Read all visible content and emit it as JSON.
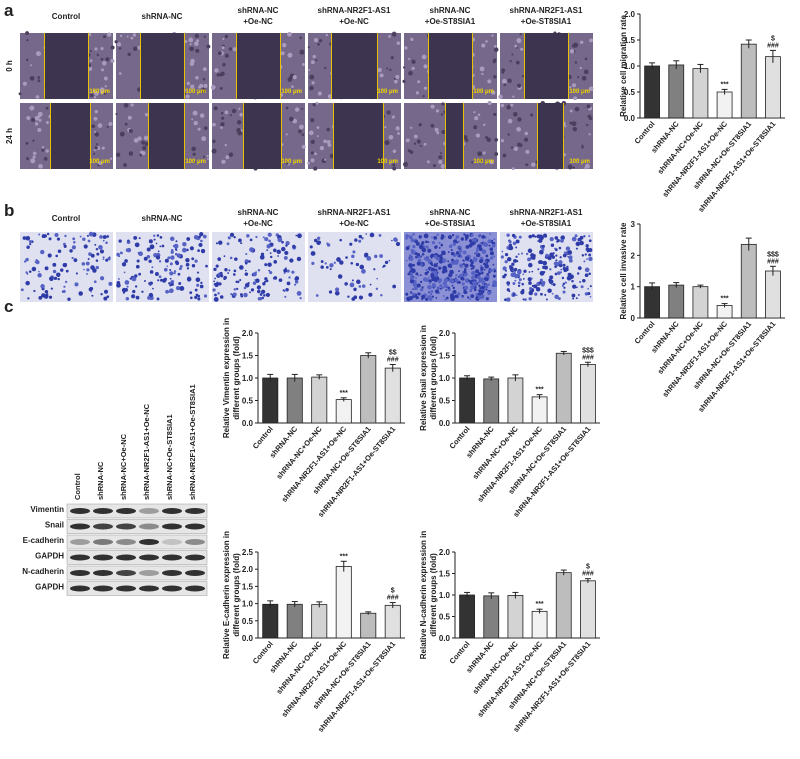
{
  "panel_labels": [
    "a",
    "b",
    "c"
  ],
  "wound_healing": {
    "columns": [
      [
        "Control"
      ],
      [
        "shRNA-NC"
      ],
      [
        "shRNA-NC",
        "+Oe-NC"
      ],
      [
        "shRNA-NR2F1-AS1",
        "+Oe-NC"
      ],
      [
        "shRNA-NC",
        "+Oe-ST8SIA1"
      ],
      [
        "shRNA-NR2F1-AS1",
        "+Oe-ST8SIA1"
      ]
    ],
    "rows": [
      "0 h",
      "24 h"
    ],
    "scale_bar": "100 μm"
  },
  "transwell": {
    "columns": [
      [
        "Control"
      ],
      [
        "shRNA-NC"
      ],
      [
        "shRNA-NC",
        "+Oe-NC"
      ],
      [
        "shRNA-NR2F1-AS1",
        "+Oe-NC"
      ],
      [
        "shRNA-NC",
        "+Oe-ST8SIA1"
      ],
      [
        "shRNA-NR2F1-AS1",
        "+Oe-ST8SIA1"
      ]
    ]
  },
  "western_blot": {
    "lanes": [
      "Control",
      "shRNA-NC",
      "shRNA-NC+Oe-NC",
      "shRNA-NR2F1-AS1+Oe-NC",
      "shRNA-NC+Oe-ST8SIA1",
      "shRNA-NR2F1-AS1+Oe-ST8SIA1"
    ],
    "bands": [
      "Vimentin",
      "Snail",
      "E-cadherin",
      "GAPDH",
      "N-cadherin",
      "GAPDH"
    ]
  },
  "chart_data": [
    {
      "type": "bar",
      "y_label": [
        "Relative cell migration rate"
      ],
      "categories": [
        "Control",
        "shRNA-NC",
        "shRNA-NC+Oe-NC",
        "shRNA-NR2F1-AS1+Oe-NC",
        "shRNA-NC+Oe-ST8SIA1",
        "shRNA-NR2F1-AS1+Oe-ST8SIA1"
      ],
      "values": [
        1.0,
        1.02,
        0.95,
        0.5,
        1.42,
        1.18
      ],
      "errors": [
        0.06,
        0.08,
        0.08,
        0.05,
        0.08,
        0.12
      ],
      "annotations": [
        null,
        null,
        null,
        [
          "***"
        ],
        null,
        [
          "$",
          "###"
        ]
      ],
      "colors": [
        "#333333",
        "#808080",
        "#d3d3d3",
        "#f2f2f2",
        "#bdbdbd",
        "#e0e0e0"
      ],
      "ylim": [
        0,
        2
      ],
      "yticks": [
        {
          "value": 0,
          "label": "0.0"
        },
        0.5,
        {
          "value": 1,
          "label": "1.0"
        },
        1.5,
        {
          "value": 2,
          "label": "2.0"
        }
      ]
    },
    {
      "type": "bar",
      "y_label": [
        "Relative cell invasive rate"
      ],
      "categories": [
        "Control",
        "shRNA-NC",
        "shRNA-NC+Oe-NC",
        "shRNA-NR2F1-AS1+Oe-NC",
        "shRNA-NC+Oe-ST8SIA1",
        "shRNA-NR2F1-AS1+Oe-ST8SIA1"
      ],
      "values": [
        1.0,
        1.05,
        1.0,
        0.4,
        2.35,
        1.5
      ],
      "errors": [
        0.12,
        0.08,
        0.05,
        0.06,
        0.2,
        0.15
      ],
      "annotations": [
        null,
        null,
        null,
        [
          "***"
        ],
        null,
        [
          "$$$",
          "###"
        ]
      ],
      "colors": [
        "#333333",
        "#808080",
        "#d3d3d3",
        "#f2f2f2",
        "#bdbdbd",
        "#e0e0e0"
      ],
      "ylim": [
        0,
        3
      ],
      "yticks": [
        0,
        1,
        2,
        3
      ]
    },
    {
      "type": "bar",
      "y_label": [
        "Relative Vimentin expression in",
        "different groups (fold)"
      ],
      "categories": [
        "Control",
        "shRNA-NC",
        "shRNA-NC+Oe-NC",
        "shRNA-NR2F1-AS1+Oe-NC",
        "shRNA-NC+Oe-ST8SIA1",
        "shRNA-NR2F1-AS1+Oe-ST8SIA1"
      ],
      "values": [
        1.0,
        1.0,
        1.02,
        0.52,
        1.5,
        1.22
      ],
      "errors": [
        0.08,
        0.08,
        0.05,
        0.04,
        0.06,
        0.08
      ],
      "annotations": [
        null,
        null,
        null,
        [
          "***"
        ],
        null,
        [
          "$$",
          "###"
        ]
      ],
      "colors": [
        "#333333",
        "#808080",
        "#d3d3d3",
        "#f2f2f2",
        "#bdbdbd",
        "#e0e0e0"
      ],
      "ylim": [
        0,
        2
      ],
      "yticks": [
        {
          "value": 0,
          "label": "0.0"
        },
        0.5,
        {
          "value": 1,
          "label": "1.0"
        },
        1.5,
        {
          "value": 2,
          "label": "2.0"
        }
      ]
    },
    {
      "type": "bar",
      "y_label": [
        "Relative Snail expression in",
        "different groups (fold)"
      ],
      "categories": [
        "Control",
        "shRNA-NC",
        "shRNA-NC+Oe-NC",
        "shRNA-NR2F1-AS1+Oe-NC",
        "shRNA-NC+Oe-ST8SIA1",
        "shRNA-NR2F1-AS1+Oe-ST8SIA1"
      ],
      "values": [
        1.0,
        0.98,
        1.0,
        0.58,
        1.55,
        1.3
      ],
      "errors": [
        0.05,
        0.04,
        0.07,
        0.05,
        0.04,
        0.05
      ],
      "annotations": [
        null,
        null,
        null,
        [
          "***"
        ],
        null,
        [
          "$$$",
          "###"
        ]
      ],
      "colors": [
        "#333333",
        "#808080",
        "#d3d3d3",
        "#f2f2f2",
        "#bdbdbd",
        "#e0e0e0"
      ],
      "ylim": [
        0,
        2
      ],
      "yticks": [
        {
          "value": 0,
          "label": "0.0"
        },
        0.5,
        {
          "value": 1,
          "label": "1.0"
        },
        1.5,
        {
          "value": 2,
          "label": "2.0"
        }
      ]
    },
    {
      "type": "bar",
      "y_label": [
        "Relative E-cadherin expression in",
        "different groups (fold)"
      ],
      "categories": [
        "Control",
        "shRNA-NC",
        "shRNA-NC+Oe-NC",
        "shRNA-NR2F1-AS1+Oe-NC",
        "shRNA-NC+Oe-ST8SIA1",
        "shRNA-NR2F1-AS1+Oe-ST8SIA1"
      ],
      "values": [
        0.98,
        0.98,
        0.97,
        2.08,
        0.72,
        0.95
      ],
      "errors": [
        0.1,
        0.08,
        0.08,
        0.15,
        0.04,
        0.08
      ],
      "annotations": [
        null,
        null,
        null,
        [
          "***"
        ],
        null,
        [
          "$",
          "###"
        ]
      ],
      "colors": [
        "#333333",
        "#808080",
        "#d3d3d3",
        "#f2f2f2",
        "#bdbdbd",
        "#e0e0e0"
      ],
      "ylim": [
        0,
        2.5
      ],
      "yticks": [
        {
          "value": 0,
          "label": "0.0"
        },
        0.5,
        {
          "value": 1,
          "label": "1.0"
        },
        1.5,
        {
          "value": 2,
          "label": "2.0"
        },
        2.5
      ]
    },
    {
      "type": "bar",
      "y_label": [
        "Relative N-cadherin expression in",
        "different groups (fold)"
      ],
      "categories": [
        "Control",
        "shRNA-NC",
        "shRNA-NC+Oe-NC",
        "shRNA-NR2F1-AS1+Oe-NC",
        "shRNA-NC+Oe-ST8SIA1",
        "shRNA-NR2F1-AS1+Oe-ST8SIA1"
      ],
      "values": [
        1.0,
        0.98,
        0.99,
        0.62,
        1.52,
        1.33
      ],
      "errors": [
        0.06,
        0.07,
        0.07,
        0.05,
        0.06,
        0.05
      ],
      "annotations": [
        null,
        null,
        null,
        [
          "***"
        ],
        null,
        [
          "$",
          "###"
        ]
      ],
      "colors": [
        "#333333",
        "#808080",
        "#d3d3d3",
        "#f2f2f2",
        "#bdbdbd",
        "#e0e0e0"
      ],
      "ylim": [
        0,
        2
      ],
      "yticks": [
        {
          "value": 0,
          "label": "0.0"
        },
        0.5,
        {
          "value": 1,
          "label": "1.0"
        },
        1.5,
        {
          "value": 2,
          "label": "2.0"
        }
      ]
    }
  ]
}
